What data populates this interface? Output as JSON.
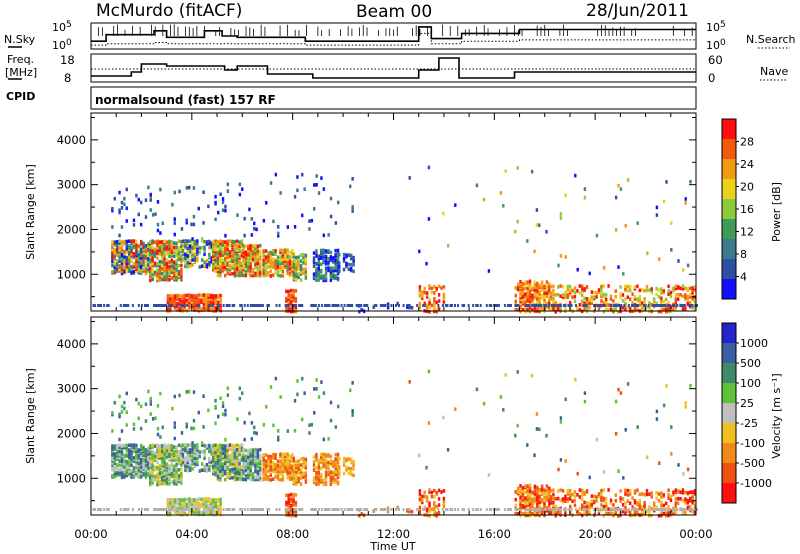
{
  "header": {
    "radar": "McMurdo (fitACF)",
    "beam": "Beam 00",
    "date": "28/Jun/2011"
  },
  "noise_panel": {
    "left_label": "N.Sky",
    "right_label": "N.Search",
    "left_ticks": [
      "10^5",
      "10^0"
    ],
    "right_ticks": [
      "10^5",
      "10^0"
    ]
  },
  "freq_panel": {
    "left_label_1": "Freq.",
    "left_label_2": "[MHz]",
    "right_label": "Nave",
    "left_ticks": [
      "18",
      "8"
    ],
    "right_ticks": [
      "60",
      "0"
    ]
  },
  "cpid": {
    "label": "CPID",
    "program": "normalsound (fast) 157 RF"
  },
  "colors": {
    "power_scale": [
      "#1010ff",
      "#2e4fa3",
      "#3a7a8a",
      "#3f9b5a",
      "#8fc93c",
      "#e8d21c",
      "#f39a12",
      "#f25a0c",
      "#ff1010"
    ],
    "velocity_scale": [
      "#2424c8",
      "#3a5fa0",
      "#3f8a6a",
      "#5fc03a",
      "#bfbfbf",
      "#f0c020",
      "#f08a18",
      "#f05010",
      "#ff1010"
    ],
    "ground_scatter": "#b0b0b0"
  },
  "chart_data": [
    {
      "type": "heatmap",
      "name": "power",
      "ylabel": "Slant Range [km]",
      "colorbar_label": "Power [dB]",
      "colorbar_ticks": [
        "4",
        "8",
        "12",
        "16",
        "20",
        "24",
        "28"
      ],
      "xlim_hours": [
        0,
        24
      ],
      "ylim_km": [
        180,
        4600
      ],
      "yticks": [
        "1000",
        "2000",
        "3000",
        "4000"
      ]
    },
    {
      "type": "heatmap",
      "name": "velocity",
      "ylabel": "Slant Range [km]",
      "colorbar_label": "Velocity [m s⁻¹]",
      "colorbar_ticks": [
        "1000",
        "500",
        "100",
        "25",
        "-25",
        "-100",
        "-500",
        "-1000"
      ],
      "xlim_hours": [
        0,
        24
      ],
      "ylim_km": [
        180,
        4600
      ],
      "yticks": [
        "1000",
        "2000",
        "3000",
        "4000"
      ]
    }
  ],
  "time_axis": {
    "label": "Time UT",
    "ticks": [
      "00:00",
      "04:00",
      "08:00",
      "12:00",
      "16:00",
      "20:00",
      "00:00"
    ]
  },
  "echo_regions": [
    {
      "t0": 0.8,
      "t1": 2.3,
      "r0": 1050,
      "r1": 1800,
      "density": 0.75,
      "power": [
        0,
        8
      ],
      "vel": [
        1,
        4
      ]
    },
    {
      "t0": 2.3,
      "t1": 3.6,
      "r0": 900,
      "r1": 1800,
      "density": 0.8,
      "power": [
        2,
        8
      ],
      "vel": [
        2,
        5
      ]
    },
    {
      "t0": 3.6,
      "t1": 4.8,
      "r0": 1200,
      "r1": 1850,
      "density": 0.55,
      "power": [
        0,
        6
      ],
      "vel": [
        1,
        4
      ]
    },
    {
      "t0": 4.8,
      "t1": 6.0,
      "r0": 1000,
      "r1": 1800,
      "density": 0.8,
      "power": [
        3,
        8
      ],
      "vel": [
        1,
        5
      ]
    },
    {
      "t0": 6.0,
      "t1": 6.8,
      "r0": 1000,
      "r1": 1700,
      "density": 0.75,
      "power": [
        3,
        8
      ],
      "vel": [
        1,
        4
      ]
    },
    {
      "t0": 6.8,
      "t1": 8.0,
      "r0": 1000,
      "r1": 1600,
      "density": 0.7,
      "power": [
        3,
        8
      ],
      "vel": [
        5,
        7
      ]
    },
    {
      "t0": 8.0,
      "t1": 8.6,
      "r0": 900,
      "r1": 1500,
      "density": 0.65,
      "power": [
        2,
        6
      ],
      "vel": [
        5,
        7
      ]
    },
    {
      "t0": 8.8,
      "t1": 9.8,
      "r0": 900,
      "r1": 1600,
      "density": 0.6,
      "power": [
        0,
        3
      ],
      "vel": [
        5,
        7
      ]
    },
    {
      "t0": 9.8,
      "t1": 10.5,
      "r0": 1100,
      "r1": 1500,
      "density": 0.4,
      "power": [
        0,
        2
      ],
      "vel": [
        5,
        6
      ]
    },
    {
      "t0": 3.0,
      "t1": 5.2,
      "r0": 220,
      "r1": 600,
      "density": 0.85,
      "power": [
        6,
        8
      ],
      "vel": [
        3,
        5
      ]
    },
    {
      "t0": 0.8,
      "t1": 5.0,
      "r0": 1900,
      "r1": 3000,
      "density": 0.05,
      "power": [
        0,
        2
      ],
      "vel": [
        1,
        3
      ]
    },
    {
      "t0": 5.0,
      "t1": 10.5,
      "r0": 1900,
      "r1": 3300,
      "density": 0.03,
      "power": [
        0,
        2
      ],
      "vel": [
        1,
        3
      ]
    },
    {
      "t0": 7.7,
      "t1": 8.2,
      "r0": 200,
      "r1": 700,
      "density": 0.6,
      "power": [
        6,
        8
      ],
      "vel": [
        6,
        8
      ]
    },
    {
      "t0": 13.0,
      "t1": 14.0,
      "r0": 200,
      "r1": 800,
      "density": 0.45,
      "power": [
        5,
        8
      ],
      "vel": [
        5,
        8
      ]
    },
    {
      "t0": 16.8,
      "t1": 18.2,
      "r0": 200,
      "r1": 900,
      "density": 0.65,
      "power": [
        5,
        8
      ],
      "vel": [
        5,
        8
      ]
    },
    {
      "t0": 18.2,
      "t1": 24.0,
      "r0": 200,
      "r1": 800,
      "density": 0.35,
      "power": [
        4,
        8
      ],
      "vel": [
        5,
        8
      ]
    },
    {
      "t0": 12.5,
      "t1": 24.0,
      "r0": 1000,
      "r1": 3500,
      "density": 0.008,
      "power": [
        0,
        6
      ],
      "vel": [
        1,
        7
      ]
    },
    {
      "t0": 10.5,
      "t1": 12.8,
      "r0": 200,
      "r1": 450,
      "density": 0.12,
      "power": [
        0,
        1
      ],
      "vel": [
        6,
        7
      ]
    }
  ],
  "noise_series": {
    "sky_hours": [
      0,
      0.6,
      0.6,
      2.5,
      2.5,
      3.0,
      3.0,
      4.5,
      4.5,
      5.2,
      5.2,
      5.8,
      5.8,
      8.5,
      8.5,
      9.2,
      9.2,
      13.0,
      13.0,
      13.5,
      13.5,
      14.7,
      14.7,
      17.0,
      17.0,
      24
    ],
    "sky_level": [
      0.3,
      0.3,
      0.55,
      0.55,
      0.7,
      0.7,
      0.45,
      0.45,
      0.7,
      0.7,
      0.5,
      0.5,
      0.45,
      0.45,
      0.3,
      0.3,
      0.3,
      0.3,
      0.85,
      0.85,
      0.4,
      0.4,
      0.6,
      0.6,
      0.75,
      0.75
    ],
    "search_level": [
      0.15,
      0.15,
      0.2,
      0.2,
      0.25,
      0.25,
      0.2,
      0.2,
      0.2,
      0.2,
      0.2,
      0.2,
      0.2,
      0.2,
      0.15,
      0.15,
      0.15,
      0.15,
      0.6,
      0.6,
      0.2,
      0.2,
      0.3,
      0.3,
      0.35,
      0.35
    ]
  },
  "freq_series": {
    "hours": [
      0,
      1.6,
      1.6,
      2.0,
      2.0,
      3.0,
      3.0,
      5.3,
      5.3,
      5.8,
      5.8,
      7.0,
      7.0,
      8.8,
      8.8,
      13.0,
      13.0,
      13.8,
      13.8,
      14.6,
      14.6,
      16.8,
      16.8,
      24
    ],
    "freq_mhz": [
      9,
      9,
      11,
      11,
      15,
      15,
      14,
      14,
      12,
      12,
      14,
      14,
      10,
      10,
      8,
      8,
      12,
      12,
      18,
      18,
      8,
      8,
      11,
      11
    ]
  }
}
